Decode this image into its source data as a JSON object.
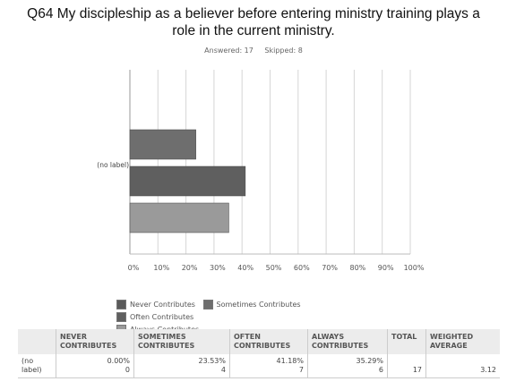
{
  "title_line1": "Q64 My discipleship as a believer before entering ministry training plays a",
  "title_line2": "role in the current ministry.",
  "answered": "Answered: 17",
  "skipped": "Skipped: 8",
  "chart_data": {
    "type": "bar",
    "orientation": "horizontal",
    "categories": [
      "(no label)"
    ],
    "series": [
      {
        "name": "Never Contributes",
        "values": [
          0.0
        ],
        "color": "#5a5a5a"
      },
      {
        "name": "Sometimes Contributes",
        "values": [
          23.53
        ],
        "color": "#6e6e6e"
      },
      {
        "name": "Often Contributes",
        "values": [
          41.18
        ],
        "color": "#5f5f5f"
      },
      {
        "name": "Always Contributes",
        "values": [
          35.29
        ],
        "color": "#9a9a9a"
      }
    ],
    "xlim": [
      0,
      100
    ],
    "xticks": [
      "0%",
      "10%",
      "20%",
      "30%",
      "40%",
      "50%",
      "60%",
      "70%",
      "80%",
      "90%",
      "100%"
    ],
    "grid": true,
    "legend_position": "bottom"
  },
  "table": {
    "headers": [
      "",
      "NEVER CONTRIBUTES",
      "SOMETIMES CONTRIBUTES",
      "OFTEN CONTRIBUTES",
      "ALWAYS CONTRIBUTES",
      "TOTAL",
      "WEIGHTED AVERAGE"
    ],
    "rows": [
      {
        "label": "(no label)",
        "cells": [
          {
            "pct": "0.00%",
            "count": "0"
          },
          {
            "pct": "23.53%",
            "count": "4"
          },
          {
            "pct": "41.18%",
            "count": "7"
          },
          {
            "pct": "35.29%",
            "count": "6"
          }
        ],
        "total": "17",
        "weighted_average": "3.12"
      }
    ]
  }
}
